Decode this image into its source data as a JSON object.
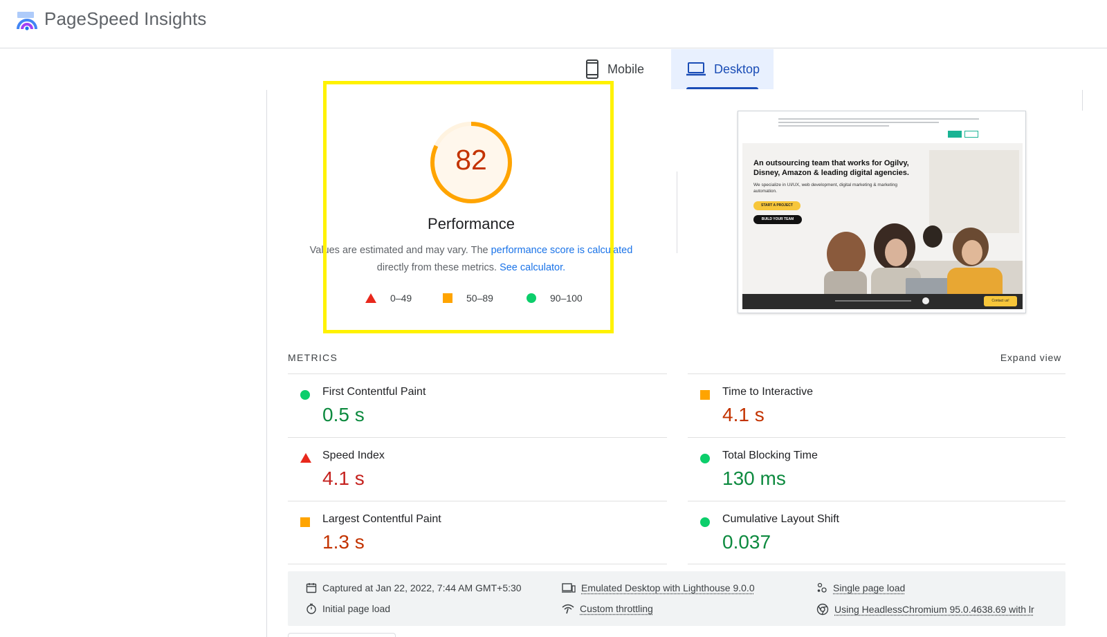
{
  "header": {
    "title": "PageSpeed Insights"
  },
  "tabs": [
    {
      "label": "Mobile",
      "icon": "phone-icon",
      "active": false
    },
    {
      "label": "Desktop",
      "icon": "laptop-icon",
      "active": true
    }
  ],
  "performance": {
    "score": "82",
    "score_color": "#ffa400",
    "title": "Performance",
    "desc_prefix": "Values are estimated and may vary. The ",
    "desc_link1": "performance score is calculated",
    "desc_middle": " directly from these metrics. ",
    "desc_link2": "See calculator.",
    "legend": [
      {
        "range": "0–49",
        "shape": "triangle",
        "color": "#e8281c"
      },
      {
        "range": "50–89",
        "shape": "square",
        "color": "#ffa400"
      },
      {
        "range": "90–100",
        "shape": "circle",
        "color": "#0cce6b"
      }
    ]
  },
  "screenshot": {
    "headline": "An outsourcing team that works for Ogilvy, Disney, Amazon & leading digital agencies.",
    "subtext": "We specialize in UI/UX, web development, digital marketing & marketing automation.",
    "cta_primary": "START A PROJECT",
    "cta_secondary": "BUILD YOUR TEAM",
    "contact": "Contact us!"
  },
  "metrics": {
    "label": "METRICS",
    "expand_label": "Expand view",
    "items": [
      {
        "name": "First Contentful Paint",
        "value": "0.5 s",
        "rating": "good"
      },
      {
        "name": "Time to Interactive",
        "value": "4.1 s",
        "rating": "average"
      },
      {
        "name": "Speed Index",
        "value": "4.1 s",
        "rating": "poor"
      },
      {
        "name": "Total Blocking Time",
        "value": "130 ms",
        "rating": "good"
      },
      {
        "name": "Largest Contentful Paint",
        "value": "1.3 s",
        "rating": "average"
      },
      {
        "name": "Cumulative Layout Shift",
        "value": "0.037",
        "rating": "good"
      }
    ]
  },
  "info": {
    "captured": "Captured at Jan 22, 2022, 7:44 AM GMT+5:30",
    "emulated": "Emulated Desktop with Lighthouse 9.0.0",
    "single_load": "Single page load",
    "initial_load": "Initial page load",
    "throttling": "Custom throttling",
    "browser": "Using HeadlessChromium 95.0.4638.69 with lr"
  },
  "colors": {
    "good": "#0cce6b",
    "average": "#ffa400",
    "poor": "#e8281c",
    "accent": "#1a73e8"
  }
}
